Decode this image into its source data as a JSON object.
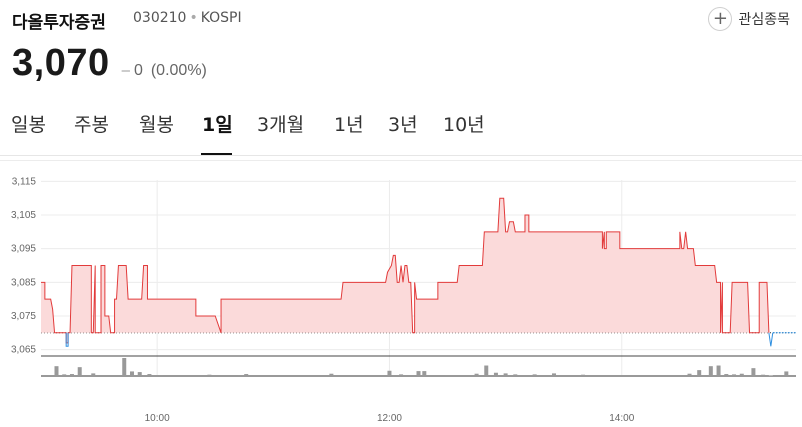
{
  "stock": {
    "name": "다올투자증권",
    "code": "030210",
    "market": "KOSPI",
    "price": "3,070",
    "change_value": "0",
    "change_percent": "(0.00%)"
  },
  "watch_button": {
    "label": "관심종목",
    "icon": "plus-icon"
  },
  "tabs": [
    {
      "label": "일봉",
      "active": false
    },
    {
      "label": "주봉",
      "active": false
    },
    {
      "label": "월봉",
      "active": false
    },
    {
      "label": "1일",
      "active": true
    },
    {
      "label": "3개월",
      "active": false
    },
    {
      "label": "1년",
      "active": false
    },
    {
      "label": "3년",
      "active": false
    },
    {
      "label": "10년",
      "active": false
    }
  ],
  "colors": {
    "line_up": "#e23b3b",
    "fill_up": "#fbdada",
    "line_down": "#2e8fe0",
    "baseline": "#333333",
    "volume": "#999999",
    "grid": "#ececec"
  },
  "chart_data": {
    "type": "line",
    "title": "",
    "xlabel": "",
    "ylabel": "",
    "reference_price": 3070,
    "ylim": [
      3064,
      3116
    ],
    "y_ticks": [
      {
        "value": 3115,
        "label": "3,115"
      },
      {
        "value": 3105,
        "label": "3,105"
      },
      {
        "value": 3095,
        "label": "3,095"
      },
      {
        "value": 3085,
        "label": "3,085"
      },
      {
        "value": 3075,
        "label": "3,075"
      },
      {
        "value": 3065,
        "label": "3,065"
      }
    ],
    "x_range": [
      "09:00",
      "15:30"
    ],
    "x_ticks": [
      {
        "time": "10:00",
        "label": "10:00"
      },
      {
        "time": "12:00",
        "label": "12:00"
      },
      {
        "time": "14:00",
        "label": "14:00"
      }
    ],
    "grid": true,
    "series": [
      {
        "points": [
          [
            "09:00",
            3085
          ],
          [
            "09:02",
            3085
          ],
          [
            "09:02",
            3080
          ],
          [
            "09:05",
            3080
          ],
          [
            "09:06",
            3077
          ],
          [
            "09:07",
            3070
          ],
          [
            "09:13",
            3070
          ],
          [
            "09:13",
            3067
          ],
          [
            "09:14",
            3067
          ],
          [
            "09:14",
            3070
          ],
          [
            "09:15",
            3070
          ],
          [
            "09:16",
            3090
          ],
          [
            "09:26",
            3090
          ],
          [
            "09:26",
            3070
          ],
          [
            "09:27",
            3070
          ],
          [
            "09:28",
            3090
          ],
          [
            "09:28",
            3070
          ],
          [
            "09:31",
            3070
          ],
          [
            "09:31",
            3090
          ],
          [
            "09:33",
            3090
          ],
          [
            "09:33",
            3075
          ],
          [
            "09:35",
            3075
          ],
          [
            "09:36",
            3070
          ],
          [
            "09:38",
            3070
          ],
          [
            "09:38",
            3080
          ],
          [
            "09:39",
            3080
          ],
          [
            "09:40",
            3090
          ],
          [
            "09:44",
            3090
          ],
          [
            "09:45",
            3080
          ],
          [
            "09:52",
            3080
          ],
          [
            "09:53",
            3090
          ],
          [
            "09:55",
            3090
          ],
          [
            "09:55",
            3080
          ],
          [
            "10:20",
            3080
          ],
          [
            "10:20",
            3075
          ],
          [
            "10:30",
            3075
          ],
          [
            "10:33",
            3070
          ],
          [
            "10:33",
            3080
          ],
          [
            "11:35",
            3080
          ],
          [
            "11:36",
            3085
          ],
          [
            "11:58",
            3085
          ],
          [
            "11:59",
            3088
          ],
          [
            "12:01",
            3090
          ],
          [
            "12:02",
            3093
          ],
          [
            "12:03",
            3093
          ],
          [
            "12:04",
            3085
          ],
          [
            "12:05",
            3085
          ],
          [
            "12:06",
            3090
          ],
          [
            "12:07",
            3085
          ],
          [
            "12:08",
            3090
          ],
          [
            "12:09",
            3090
          ],
          [
            "12:10",
            3085
          ],
          [
            "12:11",
            3085
          ],
          [
            "12:12",
            3070
          ],
          [
            "12:13",
            3070
          ],
          [
            "12:13",
            3085
          ],
          [
            "12:14",
            3080
          ],
          [
            "12:25",
            3080
          ],
          [
            "12:25",
            3085
          ],
          [
            "12:35",
            3085
          ],
          [
            "12:36",
            3090
          ],
          [
            "12:48",
            3090
          ],
          [
            "12:49",
            3100
          ],
          [
            "12:56",
            3100
          ],
          [
            "12:57",
            3110
          ],
          [
            "12:59",
            3110
          ],
          [
            "13:00",
            3100
          ],
          [
            "13:01",
            3100
          ],
          [
            "13:02",
            3103
          ],
          [
            "13:04",
            3103
          ],
          [
            "13:05",
            3100
          ],
          [
            "13:10",
            3100
          ],
          [
            "13:10",
            3105
          ],
          [
            "13:12",
            3105
          ],
          [
            "13:12",
            3100
          ],
          [
            "13:50",
            3100
          ],
          [
            "13:50",
            3095
          ],
          [
            "13:51",
            3100
          ],
          [
            "13:51",
            3095
          ],
          [
            "13:52",
            3095
          ],
          [
            "13:52",
            3100
          ],
          [
            "13:59",
            3100
          ],
          [
            "13:59",
            3095
          ],
          [
            "14:30",
            3095
          ],
          [
            "14:30",
            3100
          ],
          [
            "14:31",
            3095
          ],
          [
            "14:32",
            3095
          ],
          [
            "14:33",
            3100
          ],
          [
            "14:34",
            3095
          ],
          [
            "14:37",
            3095
          ],
          [
            "14:38",
            3090
          ],
          [
            "14:48",
            3090
          ],
          [
            "14:49",
            3085
          ],
          [
            "14:51",
            3085
          ],
          [
            "14:51",
            3070
          ],
          [
            "14:52",
            3085
          ],
          [
            "14:52",
            3070
          ],
          [
            "14:56",
            3070
          ],
          [
            "14:57",
            3085
          ],
          [
            "15:05",
            3085
          ],
          [
            "15:06",
            3070
          ],
          [
            "15:11",
            3070
          ],
          [
            "15:11",
            3085
          ],
          [
            "15:15",
            3085
          ],
          [
            "15:16",
            3070
          ]
        ]
      },
      {
        "points": [
          [
            "15:16",
            3070
          ],
          [
            "15:17",
            3066
          ],
          [
            "15:18",
            3070
          ],
          [
            "15:30",
            3070
          ]
        ]
      }
    ],
    "volume": [
      {
        "time": "09:05",
        "value": 3
      },
      {
        "time": "09:08",
        "value": 30
      },
      {
        "time": "09:12",
        "value": 5
      },
      {
        "time": "09:16",
        "value": 6
      },
      {
        "time": "09:20",
        "value": 27
      },
      {
        "time": "09:27",
        "value": 8
      },
      {
        "time": "09:43",
        "value": 55
      },
      {
        "time": "09:47",
        "value": 14
      },
      {
        "time": "09:51",
        "value": 12
      },
      {
        "time": "09:56",
        "value": 6
      },
      {
        "time": "10:02",
        "value": 3
      },
      {
        "time": "10:27",
        "value": 4
      },
      {
        "time": "10:43",
        "value": 3
      },
      {
        "time": "10:46",
        "value": 6
      },
      {
        "time": "11:30",
        "value": 7
      },
      {
        "time": "12:00",
        "value": 16
      },
      {
        "time": "12:06",
        "value": 5
      },
      {
        "time": "12:15",
        "value": 15
      },
      {
        "time": "12:18",
        "value": 15
      },
      {
        "time": "12:30",
        "value": 3
      },
      {
        "time": "12:45",
        "value": 7
      },
      {
        "time": "12:50",
        "value": 32
      },
      {
        "time": "12:55",
        "value": 10
      },
      {
        "time": "13:00",
        "value": 8
      },
      {
        "time": "13:05",
        "value": 5
      },
      {
        "time": "13:15",
        "value": 5
      },
      {
        "time": "13:25",
        "value": 8
      },
      {
        "time": "13:40",
        "value": 4
      },
      {
        "time": "14:35",
        "value": 7
      },
      {
        "time": "14:40",
        "value": 18
      },
      {
        "time": "14:46",
        "value": 30
      },
      {
        "time": "14:50",
        "value": 32
      },
      {
        "time": "14:54",
        "value": 6
      },
      {
        "time": "14:58",
        "value": 5
      },
      {
        "time": "15:02",
        "value": 7
      },
      {
        "time": "15:08",
        "value": 24
      },
      {
        "time": "15:13",
        "value": 4
      },
      {
        "time": "15:17",
        "value": 2
      },
      {
        "time": "15:25",
        "value": 14
      }
    ]
  }
}
